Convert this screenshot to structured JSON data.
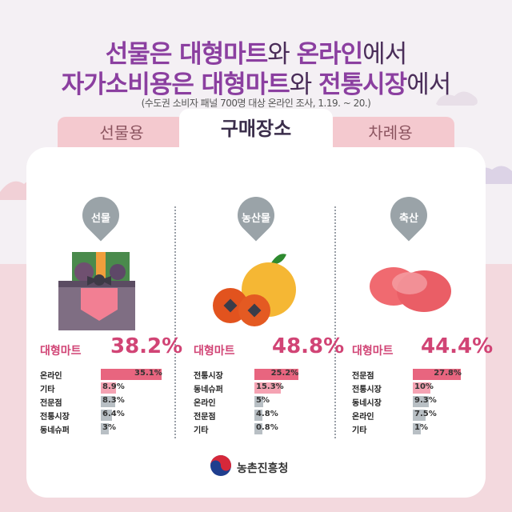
{
  "header": {
    "line1": [
      {
        "text": "선물은 ",
        "hl": true
      },
      {
        "text": "대형마트",
        "hl": true
      },
      {
        "text": "와 ",
        "hl": false
      },
      {
        "text": "온라인",
        "hl": true
      },
      {
        "text": "에서",
        "hl": false
      }
    ],
    "line2": [
      {
        "text": "자가소비용은 ",
        "hl": true
      },
      {
        "text": "대형마트",
        "hl": true
      },
      {
        "text": "와 ",
        "hl": false
      },
      {
        "text": "전통시장",
        "hl": true
      },
      {
        "text": "에서",
        "hl": false
      }
    ],
    "subtitle": "(수도권 소비자 패널 700명 대상 온라인 조사, 1.19. ~ 20.)"
  },
  "tabs": [
    {
      "label": "선물용",
      "active": false
    },
    {
      "label": "구매장소",
      "active": true
    },
    {
      "label": "차례용",
      "active": false
    }
  ],
  "colors": {
    "accent": "#d14475",
    "title": "#8b3fa0",
    "bar_top": "#e8657f",
    "bar_mid": "#f5a3b3",
    "bar_gray": "#b8bfc4",
    "pin": "#9aa3a8"
  },
  "panels": [
    {
      "pin": "선물",
      "top_label": "대형마트",
      "top_value": "38.2%",
      "rows": [
        {
          "label": "온라인",
          "value": 35.1,
          "display": "35.1%"
        },
        {
          "label": "기타",
          "value": 8.9,
          "display": "8.9%"
        },
        {
          "label": "전문점",
          "value": 8.3,
          "display": "8.3%"
        },
        {
          "label": "전통시장",
          "value": 6.4,
          "display": "6.4%"
        },
        {
          "label": "동네슈퍼",
          "value": 3,
          "display": "3%"
        }
      ]
    },
    {
      "pin": "농산물",
      "top_label": "대형마트",
      "top_value": "48.8%",
      "rows": [
        {
          "label": "전통시장",
          "value": 25.2,
          "display": "25.2%"
        },
        {
          "label": "동네슈퍼",
          "value": 15.3,
          "display": "15.3%"
        },
        {
          "label": "온라인",
          "value": 5,
          "display": "5%"
        },
        {
          "label": "전문점",
          "value": 4.8,
          "display": "4.8%"
        },
        {
          "label": "기타",
          "value": 0.8,
          "display": "0.8%"
        }
      ]
    },
    {
      "pin": "축산",
      "top_label": "대형마트",
      "top_value": "44.4%",
      "rows": [
        {
          "label": "전문점",
          "value": 27.8,
          "display": "27.8%"
        },
        {
          "label": "전통시장",
          "value": 10,
          "display": "10%"
        },
        {
          "label": "동네시장",
          "value": 9.3,
          "display": "9.3%"
        },
        {
          "label": "온라인",
          "value": 7.5,
          "display": "7.5%"
        },
        {
          "label": "기타",
          "value": 1,
          "display": "1%"
        }
      ]
    }
  ],
  "footer": {
    "org": "농촌진흥청"
  }
}
